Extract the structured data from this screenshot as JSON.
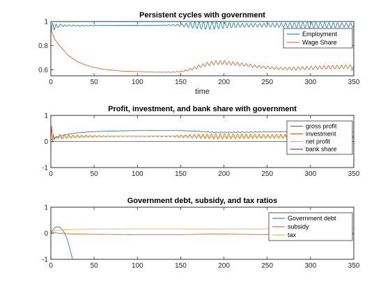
{
  "chart_data": [
    {
      "type": "line",
      "title": "Persistent cycles with government",
      "xlabel": "time",
      "ylabel": "",
      "xlim": [
        0,
        350
      ],
      "ylim": [
        0.55,
        1.0
      ],
      "xticks": [
        0,
        50,
        100,
        150,
        200,
        250,
        300,
        350
      ],
      "yticks": [
        0.6,
        0.8,
        1
      ],
      "ytick_labels": [
        "0.6",
        "0.8",
        "1"
      ],
      "legend_position": "top-right",
      "series": [
        {
          "name": "Employment",
          "color": "#0072BD",
          "x": [
            0,
            2,
            4,
            6,
            8,
            10,
            15,
            20,
            30,
            40,
            50,
            60,
            80,
            100,
            120,
            140,
            150,
            160,
            170,
            180,
            190,
            200,
            220,
            240,
            260,
            280,
            300,
            320,
            340,
            350
          ],
          "y": [
            0.9,
            0.99,
            0.93,
            0.98,
            0.95,
            0.97,
            0.965,
            0.967,
            0.966,
            0.967,
            0.967,
            0.968,
            0.968,
            0.968,
            0.969,
            0.97,
            0.97,
            0.97,
            0.968,
            0.967,
            0.968,
            0.969,
            0.969,
            0.97,
            0.97,
            0.97,
            0.97,
            0.97,
            0.97,
            0.97
          ],
          "oscillation_amplitude": [
            0,
            0,
            0,
            0,
            0,
            0.01,
            0.008,
            0.006,
            0.004,
            0.003,
            0.002,
            0.001,
            0,
            0,
            0,
            0.004,
            0.01,
            0.02,
            0.028,
            0.032,
            0.03,
            0.024,
            0.016,
            0.014,
            0.016,
            0.02,
            0.022,
            0.02,
            0.018,
            0.018
          ],
          "oscillation_period": 5
        },
        {
          "name": "Wage Share",
          "color": "#D95319",
          "x": [
            0,
            2,
            4,
            6,
            8,
            10,
            15,
            20,
            30,
            40,
            50,
            60,
            80,
            100,
            120,
            140,
            150,
            160,
            170,
            180,
            190,
            200,
            220,
            240,
            260,
            280,
            300,
            320,
            340,
            350
          ],
          "y": [
            0.93,
            0.9,
            0.86,
            0.84,
            0.82,
            0.8,
            0.76,
            0.72,
            0.67,
            0.64,
            0.62,
            0.605,
            0.59,
            0.585,
            0.58,
            0.58,
            0.585,
            0.6,
            0.625,
            0.645,
            0.66,
            0.66,
            0.645,
            0.625,
            0.612,
            0.61,
            0.615,
            0.62,
            0.625,
            0.625
          ],
          "oscillation_amplitude": [
            0,
            0,
            0,
            0,
            0,
            0,
            0,
            0,
            0,
            0,
            0,
            0,
            0,
            0,
            0,
            0.002,
            0.004,
            0.008,
            0.012,
            0.015,
            0.016,
            0.015,
            0.012,
            0.01,
            0.01,
            0.012,
            0.014,
            0.015,
            0.015,
            0.015
          ],
          "oscillation_period": 5
        }
      ]
    },
    {
      "type": "line",
      "title": "Profit, investment, and bank share with government",
      "xlabel": "",
      "ylabel": "",
      "xlim": [
        0,
        350
      ],
      "ylim": [
        -1,
        1
      ],
      "xticks": [
        0,
        50,
        100,
        150,
        200,
        250,
        300,
        350
      ],
      "yticks": [
        -1,
        0,
        1
      ],
      "ytick_labels": [
        "-1",
        "0",
        "1"
      ],
      "legend_position": "right",
      "series": [
        {
          "name": "gross profit",
          "color": "#0072BD",
          "x": [
            0,
            2,
            5,
            10,
            20,
            30,
            50,
            80,
            100,
            150,
            170,
            190,
            200,
            250,
            300,
            350
          ],
          "y": [
            0.05,
            0.1,
            0.15,
            0.2,
            0.28,
            0.33,
            0.38,
            0.41,
            0.42,
            0.42,
            0.39,
            0.35,
            0.35,
            0.37,
            0.38,
            0.38
          ],
          "oscillation_amplitude": [
            0,
            0,
            0,
            0,
            0,
            0,
            0,
            0,
            0,
            0.005,
            0.01,
            0.015,
            0.015,
            0.01,
            0.01,
            0.01
          ],
          "oscillation_period": 5
        },
        {
          "name": "investment",
          "color": "#D95319",
          "x": [
            0,
            1,
            2,
            3,
            4,
            5,
            8,
            10,
            20,
            40,
            60,
            100,
            140,
            170,
            190,
            200,
            250,
            300,
            350
          ],
          "y": [
            0.05,
            0.6,
            0.0,
            0.3,
            0.05,
            0.15,
            0.2,
            0.18,
            0.19,
            0.2,
            0.2,
            0.2,
            0.2,
            0.2,
            0.19,
            0.2,
            0.2,
            0.2,
            0.2
          ],
          "oscillation_amplitude": [
            0,
            0,
            0,
            0,
            0,
            0,
            0.08,
            0.1,
            0.06,
            0.04,
            0.02,
            0.005,
            0.02,
            0.08,
            0.1,
            0.1,
            0.07,
            0.08,
            0.08
          ],
          "oscillation_period": 5
        },
        {
          "name": "net profit",
          "color": "#EDB120",
          "x": [
            0,
            2,
            5,
            10,
            20,
            50,
            100,
            150,
            170,
            190,
            200,
            250,
            300,
            350
          ],
          "y": [
            0.03,
            0.1,
            0.12,
            0.15,
            0.18,
            0.2,
            0.21,
            0.21,
            0.2,
            0.18,
            0.18,
            0.19,
            0.2,
            0.2
          ],
          "oscillation_amplitude": [
            0,
            0,
            0,
            0,
            0,
            0,
            0,
            0.005,
            0.008,
            0.012,
            0.012,
            0.008,
            0.01,
            0.01
          ],
          "oscillation_period": 5
        },
        {
          "name": "bank share",
          "color": "#7E2F8E",
          "x": [
            0,
            350
          ],
          "y": [
            0.0,
            0.0
          ],
          "oscillation_amplitude": [
            0,
            0
          ],
          "oscillation_period": 5
        }
      ]
    },
    {
      "type": "line",
      "title": "Government debt, subsidy, and tax ratios",
      "xlabel": "",
      "ylabel": "",
      "xlim": [
        0,
        350
      ],
      "ylim": [
        -1,
        1
      ],
      "xticks": [
        0,
        50,
        100,
        150,
        200,
        250,
        300,
        350
      ],
      "yticks": [
        -1,
        0,
        1
      ],
      "ytick_labels": [
        "-1",
        "0",
        "1"
      ],
      "legend_position": "top-right",
      "series": [
        {
          "name": "Government debt",
          "color": "#0072BD",
          "x": [
            0,
            2,
            4,
            6,
            8,
            10,
            12,
            14,
            16,
            18,
            20,
            22,
            24,
            26
          ],
          "y": [
            0.0,
            0.12,
            0.2,
            0.24,
            0.25,
            0.23,
            0.18,
            0.1,
            0.0,
            -0.15,
            -0.35,
            -0.6,
            -0.85,
            -1.1
          ],
          "oscillation_amplitude": [
            0,
            0,
            0,
            0,
            0,
            0,
            0,
            0,
            0,
            0,
            0,
            0,
            0,
            0
          ],
          "oscillation_period": 5
        },
        {
          "name": "subsidy",
          "color": "#D95319",
          "x": [
            0,
            5,
            10,
            20,
            50,
            100,
            150,
            170,
            190,
            200,
            220,
            250,
            300,
            350
          ],
          "y": [
            0.05,
            0.02,
            0.0,
            -0.02,
            -0.04,
            -0.05,
            -0.05,
            -0.04,
            -0.02,
            -0.03,
            -0.04,
            -0.05,
            -0.05,
            -0.05
          ],
          "oscillation_amplitude": [
            0,
            0,
            0,
            0,
            0,
            0,
            0,
            0.002,
            0.004,
            0.004,
            0.003,
            0.002,
            0.002,
            0.002
          ],
          "oscillation_period": 5
        },
        {
          "name": "tax",
          "color": "#EDB120",
          "x": [
            0,
            5,
            10,
            20,
            50,
            100,
            150,
            170,
            190,
            200,
            220,
            250,
            300,
            350
          ],
          "y": [
            0.08,
            0.1,
            0.12,
            0.14,
            0.16,
            0.17,
            0.17,
            0.168,
            0.165,
            0.165,
            0.166,
            0.168,
            0.17,
            0.17
          ],
          "oscillation_amplitude": [
            0,
            0,
            0,
            0,
            0,
            0,
            0,
            0.001,
            0.002,
            0.002,
            0.002,
            0.001,
            0.001,
            0.001
          ],
          "oscillation_period": 5
        }
      ]
    }
  ]
}
